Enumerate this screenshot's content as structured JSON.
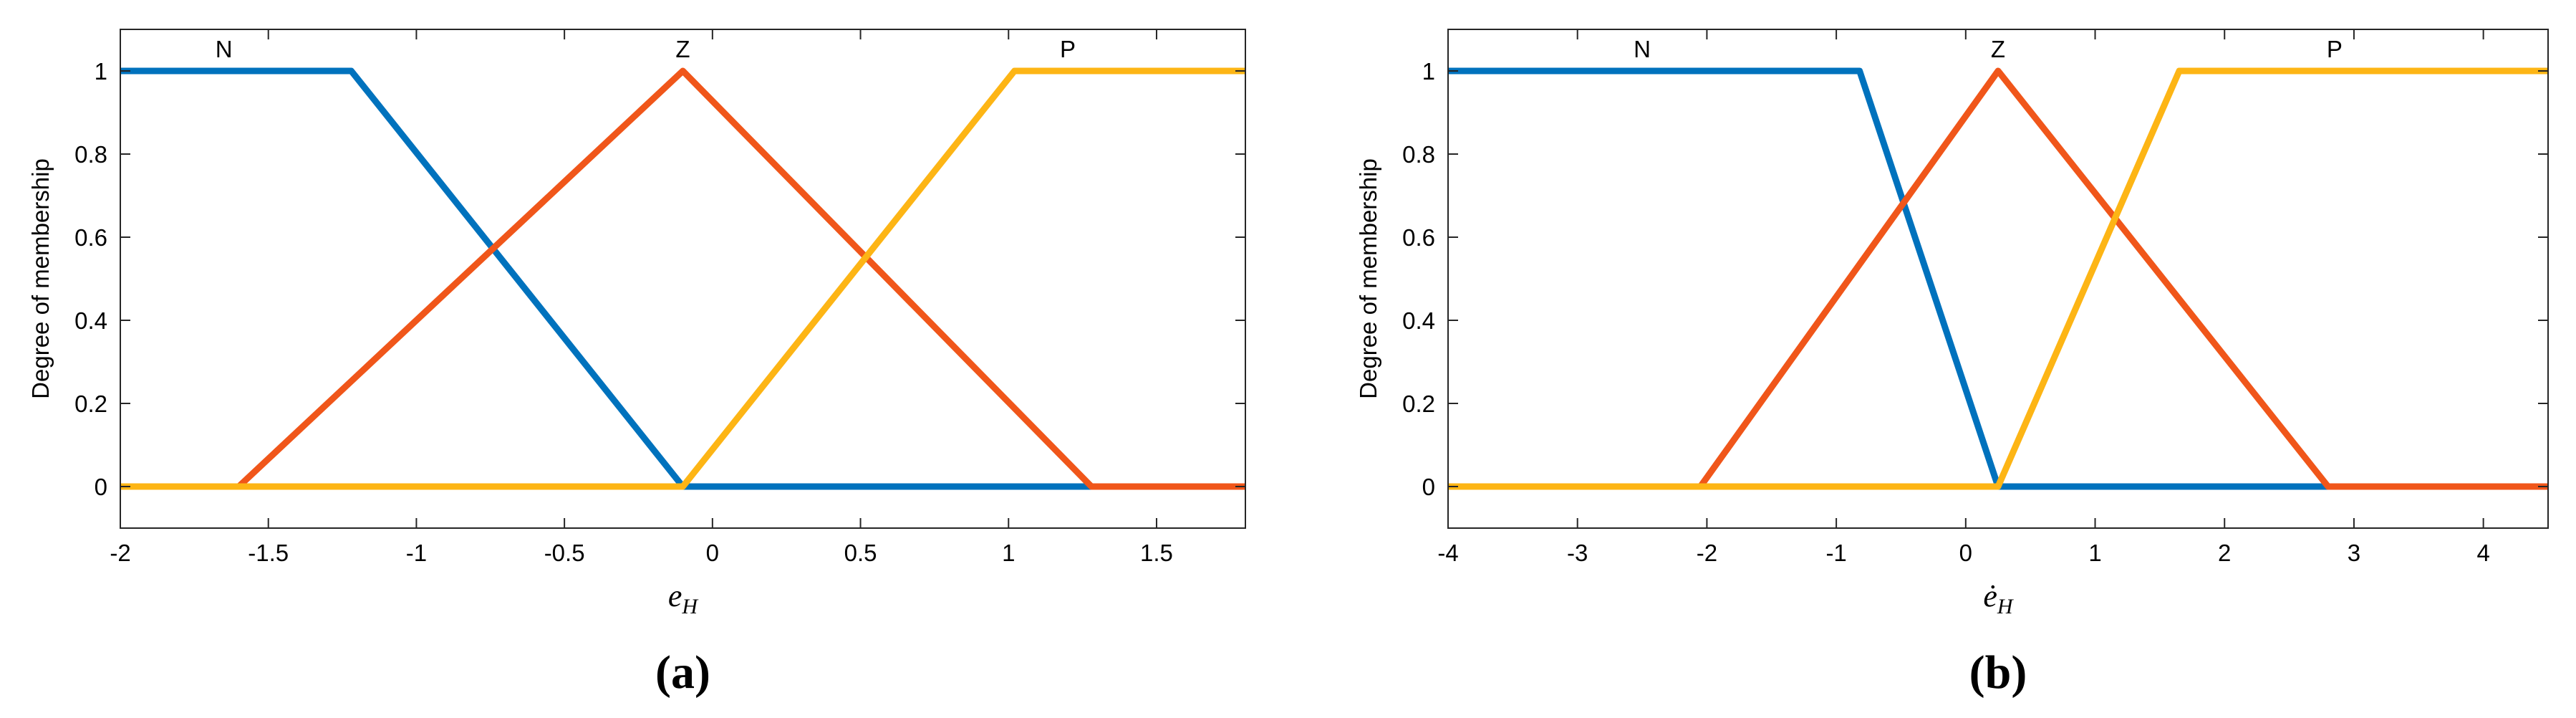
{
  "chart_data": [
    {
      "type": "line",
      "caption": "(a)",
      "xlabel": {
        "base": "e",
        "sub": "H"
      },
      "ylabel": "Degree of membership",
      "xlim": [
        -2,
        1.8
      ],
      "ylim": [
        -0.1,
        1.1
      ],
      "xticks": [
        -2,
        -1.5,
        -1,
        -0.5,
        0,
        0.5,
        1,
        1.5
      ],
      "yticks": [
        0,
        0.2,
        0.4,
        0.6,
        0.8,
        1
      ],
      "series": [
        {
          "name": "N",
          "color": "#0072BD",
          "x": [
            -2,
            -1.22,
            -0.1,
            1.8
          ],
          "values": [
            1,
            1,
            0,
            0
          ]
        },
        {
          "name": "Z",
          "color": "#F0561A",
          "x": [
            -2,
            -1.6,
            -0.1,
            1.28,
            1.8
          ],
          "values": [
            0,
            0,
            1,
            0,
            0
          ]
        },
        {
          "name": "P",
          "color": "#FDB515",
          "x": [
            -2,
            -0.1,
            1.02,
            1.8
          ],
          "values": [
            0,
            0,
            1,
            1
          ]
        }
      ],
      "annotations": [
        {
          "text": "N",
          "x": -1.65,
          "y": 1.05
        },
        {
          "text": "Z",
          "x": -0.1,
          "y": 1.05
        },
        {
          "text": "P",
          "x": 1.2,
          "y": 1.05
        }
      ]
    },
    {
      "type": "line",
      "caption": "(b)",
      "xlabel": {
        "base": "ė",
        "sub": "H"
      },
      "ylabel": "Degree of membership",
      "xlim": [
        -4,
        4.5
      ],
      "ylim": [
        -0.1,
        1.1
      ],
      "xticks": [
        -4,
        -3,
        -2,
        -1,
        0,
        1,
        2,
        3,
        4
      ],
      "yticks": [
        0,
        0.2,
        0.4,
        0.6,
        0.8,
        1
      ],
      "series": [
        {
          "name": "N",
          "color": "#0072BD",
          "x": [
            -4,
            -0.82,
            0.25,
            4.5
          ],
          "values": [
            1,
            1,
            0,
            0
          ]
        },
        {
          "name": "Z",
          "color": "#F0561A",
          "x": [
            -4,
            -2.05,
            0.25,
            2.8,
            4.5
          ],
          "values": [
            0,
            0,
            1,
            0,
            0
          ]
        },
        {
          "name": "P",
          "color": "#FDB515",
          "x": [
            -4,
            0.25,
            1.65,
            4.5
          ],
          "values": [
            0,
            0,
            1,
            1
          ]
        }
      ],
      "annotations": [
        {
          "text": "N",
          "x": -2.5,
          "y": 1.05
        },
        {
          "text": "Z",
          "x": 0.25,
          "y": 1.05
        },
        {
          "text": "P",
          "x": 2.85,
          "y": 1.05
        }
      ]
    }
  ]
}
